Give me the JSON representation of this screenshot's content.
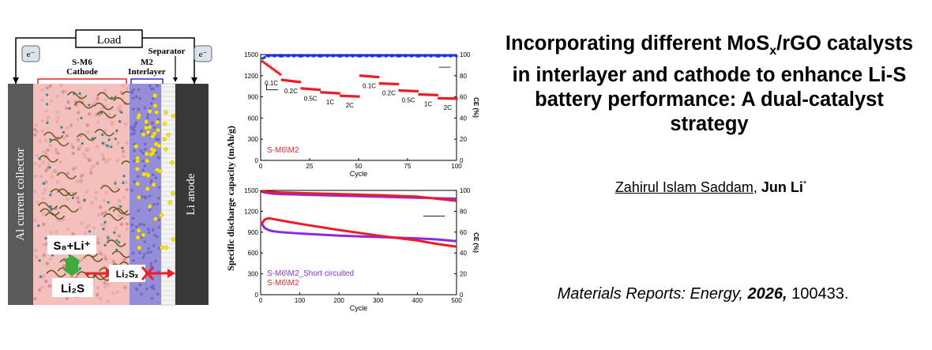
{
  "paper": {
    "title_parts": [
      "Incorporating different MoS",
      "x",
      "/rGO catalysts in interlayer and cathode to enhance Li-S battery performance: A dual-catalyst strategy"
    ],
    "authors": {
      "first": "Zahirul Islam Saddam",
      "sep": ", ",
      "corresponding": "Jun Li",
      "mark": "*"
    },
    "journal": {
      "name": "Materials Reports: Energy,",
      "year": "2026,",
      "article": "100433."
    }
  },
  "schematic": {
    "load": "Load",
    "electron_left": "e⁻",
    "electron_right": "e⁻",
    "separator": "Separator",
    "cathode_line1": "S-M6",
    "cathode_line2": "Cathode",
    "interlayer_line1": "M2",
    "interlayer_line2": "Interlayer",
    "current_collector": "Al current collector",
    "anode": "Li anode",
    "s8": "S₈+Li⁺",
    "li2s": "Li₂S",
    "li2sx": "Li₂Sₓ",
    "colors": {
      "cathode": "#f2b6b6",
      "interlayer": "#8d86d8",
      "collector": "#555555",
      "anode": "#333333",
      "arrow": "#e8212b",
      "double_arrow": "#3daa3d"
    }
  },
  "chart_data": [
    {
      "type": "scatter",
      "ylabel": "Specific discharge capacity (mAh/g)",
      "xlabel": "Cycle",
      "y2label": "CE (%)",
      "xlim": [
        0,
        100
      ],
      "ylim": [
        0,
        1500
      ],
      "y2lim": [
        0,
        100
      ],
      "x_ticks": [
        "0",
        "25",
        "50",
        "75",
        "100"
      ],
      "y_ticks": [
        "0",
        "300",
        "600",
        "900",
        "1200",
        "1500"
      ],
      "y2_ticks": [
        "0",
        "20",
        "40",
        "60",
        "80",
        "100"
      ],
      "legend": "S-M6\\M2",
      "rate_segments": [
        {
          "label": "0.1C",
          "start": 1,
          "end": 10,
          "v0": 1400,
          "v1": 1220
        },
        {
          "label": "0.2C",
          "start": 11,
          "end": 20,
          "v0": 1140,
          "v1": 1110
        },
        {
          "label": "0.5C",
          "start": 21,
          "end": 30,
          "v0": 1020,
          "v1": 1000
        },
        {
          "label": "1C",
          "start": 31,
          "end": 40,
          "v0": 965,
          "v1": 950
        },
        {
          "label": "2C",
          "start": 41,
          "end": 50,
          "v0": 915,
          "v1": 905
        },
        {
          "label": "0.1C",
          "start": 51,
          "end": 60,
          "v0": 1200,
          "v1": 1180
        },
        {
          "label": "0.2C",
          "start": 61,
          "end": 70,
          "v0": 1090,
          "v1": 1080
        },
        {
          "label": "0.5C",
          "start": 71,
          "end": 80,
          "v0": 990,
          "v1": 980
        },
        {
          "label": "1C",
          "start": 81,
          "end": 90,
          "v0": 935,
          "v1": 925
        },
        {
          "label": "2C",
          "start": 91,
          "end": 100,
          "v0": 880,
          "v1": 875
        }
      ],
      "ce_level": 99
    },
    {
      "type": "line",
      "ylabel": "Specific discharge capacity (mAh/g)",
      "xlabel": "Cycle",
      "y2label": "CE (%)",
      "xlim": [
        0,
        500
      ],
      "ylim": [
        0,
        1500
      ],
      "y2lim": [
        0,
        100
      ],
      "x_ticks": [
        "0",
        "100",
        "200",
        "300",
        "400",
        "500"
      ],
      "y_ticks": [
        "0",
        "300",
        "600",
        "900",
        "1200",
        "1500"
      ],
      "y2_ticks": [
        "0",
        "20",
        "40",
        "60",
        "80",
        "100"
      ],
      "series": [
        {
          "name": "S-M6\\M2_Short circuited",
          "color": "#8a2be2",
          "x": [
            1,
            5,
            10,
            20,
            30,
            50,
            100,
            200,
            300,
            400,
            450,
            500
          ],
          "y": [
            1050,
            1000,
            960,
            930,
            915,
            900,
            880,
            850,
            830,
            810,
            795,
            770
          ],
          "ce": [
            99,
            98.5,
            98,
            97.5,
            97,
            96.5,
            96,
            95,
            94,
            93,
            92.5,
            92
          ]
        },
        {
          "name": "S-M6\\M2",
          "color": "#ee1c25",
          "x": [
            1,
            10,
            20,
            30,
            50,
            100,
            200,
            300,
            400,
            450,
            500
          ],
          "y": [
            1000,
            1080,
            1100,
            1090,
            1070,
            1020,
            930,
            850,
            780,
            730,
            690
          ],
          "ce": [
            99,
            99,
            98.5,
            98.5,
            98,
            97.5,
            96.5,
            95.5,
            94,
            92,
            90
          ]
        }
      ]
    }
  ]
}
